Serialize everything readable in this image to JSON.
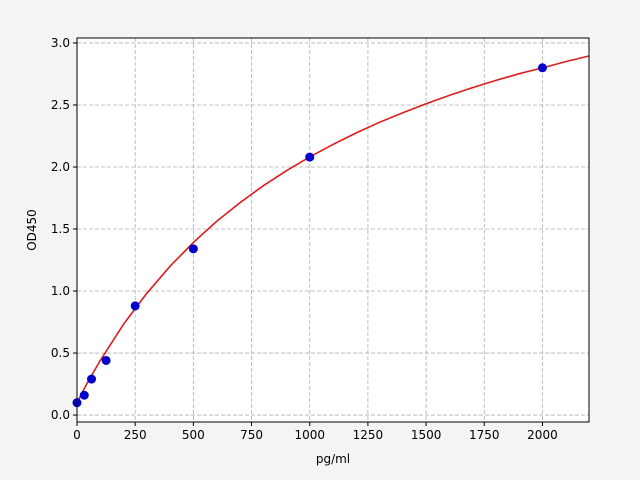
{
  "chart_data": {
    "type": "scatter",
    "title": "",
    "xlabel": "pg/ml",
    "ylabel": "OD450",
    "xlim": [
      0,
      2200
    ],
    "ylim": [
      -0.056,
      3.04
    ],
    "xticks": [
      0,
      250,
      500,
      750,
      1000,
      1250,
      1500,
      1750,
      2000
    ],
    "yticks": [
      0.0,
      0.5,
      1.0,
      1.5,
      2.0,
      2.5,
      3.0
    ],
    "xtick_labels": [
      "0",
      "250",
      "500",
      "750",
      "1000",
      "1250",
      "1500",
      "1750",
      "2000"
    ],
    "ytick_labels": [
      "0.0",
      "0.5",
      "1.0",
      "1.5",
      "2.0",
      "2.5",
      "3.0"
    ],
    "grid": true,
    "points": {
      "x": [
        0,
        31.25,
        62.5,
        125,
        250,
        500,
        1000,
        2000
      ],
      "y": [
        0.1,
        0.16,
        0.29,
        0.44,
        0.88,
        1.34,
        2.08,
        2.8
      ],
      "color": "#0000cc"
    },
    "fit_curve": {
      "x": [
        0,
        25,
        50,
        100,
        200,
        300,
        400,
        500,
        600,
        700,
        800,
        900,
        1000,
        1100,
        1200,
        1300,
        1400,
        1500,
        1600,
        1700,
        1800,
        1900,
        2000,
        2100,
        2200
      ],
      "y": [
        0.1,
        0.191,
        0.278,
        0.441,
        0.732,
        0.982,
        1.2,
        1.392,
        1.561,
        1.712,
        1.848,
        1.97,
        2.081,
        2.182,
        2.275,
        2.36,
        2.438,
        2.51,
        2.577,
        2.64,
        2.698,
        2.752,
        2.799,
        2.85,
        2.895
      ],
      "color": "#dd1c1c"
    }
  }
}
